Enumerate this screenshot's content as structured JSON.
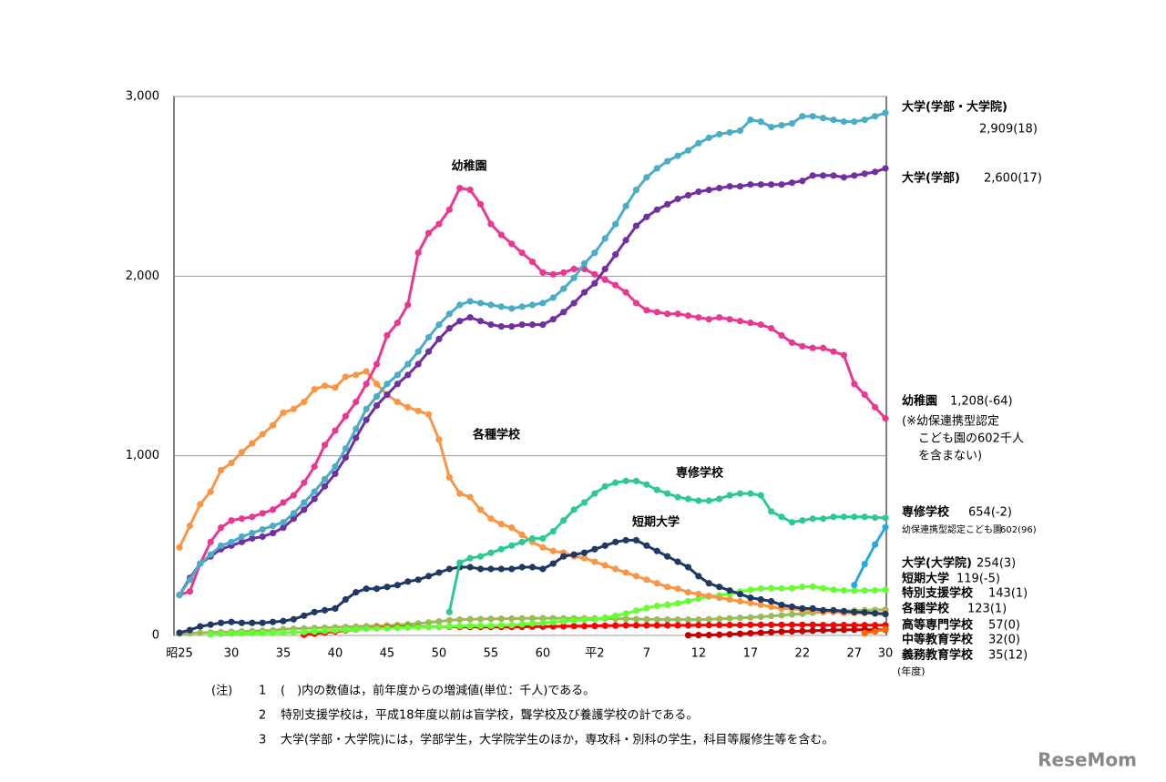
{
  "chart_data": {
    "type": "line",
    "categories": [
      "昭25",
      null,
      null,
      null,
      null,
      "30",
      null,
      null,
      null,
      null,
      "35",
      null,
      null,
      null,
      null,
      "40",
      null,
      null,
      null,
      null,
      "45",
      null,
      null,
      null,
      null,
      "50",
      null,
      null,
      null,
      null,
      "55",
      null,
      null,
      null,
      null,
      "60",
      null,
      null,
      null,
      null,
      "平2",
      null,
      null,
      null,
      null,
      "7",
      null,
      null,
      null,
      null,
      "12",
      null,
      null,
      null,
      null,
      "17",
      null,
      null,
      null,
      null,
      "22",
      null,
      null,
      null,
      null,
      "27",
      null,
      null,
      "30"
    ],
    "x_label": "(年度)",
    "ylim": [
      0,
      3000
    ],
    "yticks": [
      0,
      {
        "value": 1000,
        "label": "1,000"
      },
      {
        "value": 2000,
        "label": "2,000"
      },
      {
        "value": 3000,
        "label": "3,000"
      }
    ],
    "grid": true,
    "series": [
      {
        "name": "大学(学部・大学院)",
        "end_label": "2,909(18)",
        "color": "#4bacc6",
        "values": [
          225,
          310,
          400,
          450,
          500,
          520,
          550,
          570,
          590,
          610,
          630,
          680,
          740,
          800,
          870,
          940,
          1040,
          1150,
          1260,
          1330,
          1400,
          1450,
          1510,
          1580,
          1660,
          1730,
          1790,
          1840,
          1860,
          1850,
          1840,
          1830,
          1820,
          1830,
          1840,
          1850,
          1880,
          1930,
          1990,
          2070,
          2130,
          2210,
          2290,
          2390,
          2480,
          2550,
          2600,
          2640,
          2670,
          2700,
          2740,
          2770,
          2790,
          2800,
          2810,
          2870,
          2860,
          2830,
          2840,
          2850,
          2890,
          2890,
          2880,
          2870,
          2860,
          2860,
          2870,
          2890,
          2909
        ]
      },
      {
        "name": "大学(学部)",
        "end_label": "2,600(17)",
        "color": "#7030a0",
        "values": [
          225,
          320,
          400,
          440,
          480,
          500,
          520,
          540,
          550,
          570,
          600,
          650,
          700,
          760,
          830,
          900,
          990,
          1100,
          1200,
          1280,
          1340,
          1400,
          1450,
          1510,
          1580,
          1650,
          1710,
          1750,
          1770,
          1750,
          1730,
          1720,
          1720,
          1730,
          1730,
          1730,
          1760,
          1800,
          1850,
          1910,
          1960,
          2040,
          2120,
          2200,
          2280,
          2330,
          2370,
          2400,
          2430,
          2450,
          2470,
          2480,
          2490,
          2500,
          2500,
          2510,
          2510,
          2510,
          2510,
          2520,
          2530,
          2560,
          2560,
          2560,
          2550,
          2560,
          2570,
          2580,
          2600
        ]
      },
      {
        "name": "幼稚園",
        "end_label": "1,208(-64)",
        "color": "#e8388f",
        "values": [
          225,
          245,
          400,
          520,
          600,
          640,
          650,
          660,
          680,
          700,
          740,
          780,
          850,
          940,
          1060,
          1140,
          1220,
          1300,
          1400,
          1510,
          1670,
          1740,
          1840,
          2130,
          2240,
          2290,
          2370,
          2490,
          2480,
          2400,
          2290,
          2230,
          2180,
          2130,
          2080,
          2020,
          2010,
          2020,
          2040,
          2040,
          2010,
          1980,
          1950,
          1910,
          1850,
          1810,
          1800,
          1790,
          1790,
          1780,
          1770,
          1760,
          1770,
          1760,
          1750,
          1740,
          1730,
          1710,
          1670,
          1630,
          1610,
          1600,
          1600,
          1580,
          1560,
          1400,
          1340,
          1270,
          1208
        ]
      },
      {
        "name": "各種学校",
        "end_label": "123(1)",
        "color": "#f79646",
        "values": [
          490,
          610,
          730,
          800,
          920,
          960,
          1020,
          1070,
          1120,
          1170,
          1240,
          1260,
          1300,
          1370,
          1390,
          1380,
          1440,
          1450,
          1470,
          1400,
          1340,
          1300,
          1270,
          1250,
          1230,
          1090,
          880,
          790,
          770,
          700,
          650,
          620,
          600,
          560,
          520,
          490,
          470,
          460,
          440,
          430,
          410,
          390,
          370,
          350,
          330,
          310,
          290,
          270,
          260,
          240,
          230,
          220,
          210,
          200,
          190,
          180,
          170,
          160,
          150,
          150,
          140,
          140,
          130,
          130,
          125,
          125,
          125,
          122,
          123
        ]
      },
      {
        "name": "専修学校",
        "end_label": "654(-2)",
        "color": "#2cc990",
        "values": [
          null,
          null,
          null,
          null,
          null,
          null,
          null,
          null,
          null,
          null,
          null,
          null,
          null,
          null,
          null,
          null,
          null,
          null,
          null,
          null,
          null,
          null,
          null,
          null,
          null,
          null,
          131,
          405,
          430,
          440,
          460,
          480,
          500,
          520,
          540,
          540,
          580,
          640,
          700,
          740,
          790,
          830,
          850,
          860,
          860,
          840,
          810,
          790,
          770,
          760,
          750,
          750,
          760,
          780,
          790,
          790,
          780,
          690,
          660,
          630,
          640,
          650,
          650,
          660,
          660,
          660,
          660,
          656,
          654
        ]
      },
      {
        "name": "短期大学",
        "end_label": "119(-5)",
        "color": "#1f3864",
        "values": [
          15,
          30,
          50,
          60,
          70,
          75,
          70,
          70,
          70,
          75,
          80,
          90,
          110,
          130,
          140,
          150,
          200,
          240,
          260,
          260,
          270,
          280,
          300,
          310,
          330,
          350,
          370,
          380,
          380,
          370,
          370,
          370,
          370,
          380,
          380,
          370,
          400,
          440,
          450,
          460,
          480,
          500,
          520,
          530,
          530,
          500,
          470,
          440,
          410,
          380,
          330,
          290,
          270,
          250,
          230,
          210,
          200,
          190,
          170,
          160,
          150,
          150,
          140,
          140,
          135,
          130,
          128,
          123,
          119
        ]
      },
      {
        "name": "大学(大学院)",
        "end_label": "254(3)",
        "color": "#66ff33",
        "values": [
          null,
          null,
          null,
          5,
          8,
          10,
          11,
          12,
          13,
          14,
          15,
          17,
          19,
          22,
          25,
          28,
          31,
          34,
          37,
          39,
          40,
          42,
          44,
          46,
          47,
          48,
          50,
          52,
          53,
          54,
          54,
          56,
          58,
          62,
          66,
          70,
          74,
          79,
          84,
          87,
          90,
          99,
          109,
          122,
          138,
          153,
          164,
          171,
          179,
          191,
          205,
          216,
          223,
          231,
          244,
          254,
          261,
          263,
          262,
          263,
          271,
          272,
          263,
          255,
          251,
          249,
          250,
          251,
          254
        ]
      },
      {
        "name": "特別支援学校",
        "end_label": "143(1)",
        "color": "#9bbb59",
        "values": [
          10,
          12,
          14,
          16,
          18,
          20,
          22,
          24,
          26,
          28,
          35,
          37,
          39,
          41,
          43,
          45,
          47,
          49,
          51,
          53,
          55,
          58,
          62,
          66,
          72,
          78,
          84,
          88,
          90,
          91,
          92,
          93,
          94,
          95,
          96,
          96,
          96,
          95,
          95,
          95,
          95,
          94,
          93,
          92,
          91,
          90,
          89,
          88,
          88,
          88,
          88,
          90,
          92,
          95,
          98,
          100,
          104,
          108,
          112,
          117,
          121,
          126,
          130,
          133,
          136,
          138,
          140,
          142,
          143
        ]
      },
      {
        "name": "高等専門学校",
        "end_label": "57(0)",
        "color": "#ff0000",
        "values": [
          null,
          null,
          null,
          null,
          null,
          null,
          null,
          null,
          null,
          null,
          null,
          null,
          4,
          10,
          16,
          22,
          28,
          33,
          38,
          42,
          44,
          46,
          47,
          48,
          48,
          48,
          48,
          47,
          47,
          47,
          47,
          47,
          47,
          48,
          49,
          49,
          50,
          51,
          52,
          52,
          53,
          54,
          55,
          56,
          56,
          56,
          56,
          56,
          56,
          56,
          57,
          57,
          58,
          58,
          58,
          59,
          59,
          59,
          59,
          59,
          59,
          59,
          58,
          58,
          58,
          57,
          57,
          57,
          57
        ]
      },
      {
        "name": "中等教育学校",
        "end_label": "32(0)",
        "color": "#c00000",
        "values": [
          null,
          null,
          null,
          null,
          null,
          null,
          null,
          null,
          null,
          null,
          null,
          null,
          null,
          null,
          null,
          null,
          null,
          null,
          null,
          null,
          null,
          null,
          null,
          null,
          null,
          null,
          null,
          null,
          null,
          null,
          null,
          null,
          null,
          null,
          null,
          null,
          null,
          null,
          null,
          null,
          null,
          null,
          null,
          null,
          null,
          null,
          null,
          null,
          null,
          1,
          2,
          2,
          4,
          6,
          9,
          12,
          15,
          18,
          21,
          23,
          24,
          26,
          28,
          30,
          31,
          32,
          32,
          32,
          32
        ]
      },
      {
        "name": "義務教育学校",
        "end_label": "35(12)",
        "color": "#ff6600",
        "values": [
          null,
          null,
          null,
          null,
          null,
          null,
          null,
          null,
          null,
          null,
          null,
          null,
          null,
          null,
          null,
          null,
          null,
          null,
          null,
          null,
          null,
          null,
          null,
          null,
          null,
          null,
          null,
          null,
          null,
          null,
          null,
          null,
          null,
          null,
          null,
          null,
          null,
          null,
          null,
          null,
          null,
          null,
          null,
          null,
          null,
          null,
          null,
          null,
          null,
          null,
          null,
          null,
          null,
          null,
          null,
          null,
          null,
          null,
          null,
          null,
          null,
          null,
          null,
          null,
          null,
          null,
          13,
          22,
          35
        ]
      },
      {
        "name": "幼保連携型認定こども園",
        "end_label": "602(96)",
        "color": "#29a9e0",
        "values": [
          null,
          null,
          null,
          null,
          null,
          null,
          null,
          null,
          null,
          null,
          null,
          null,
          null,
          null,
          null,
          null,
          null,
          null,
          null,
          null,
          null,
          null,
          null,
          null,
          null,
          null,
          null,
          null,
          null,
          null,
          null,
          null,
          null,
          null,
          null,
          null,
          null,
          null,
          null,
          null,
          null,
          null,
          null,
          null,
          null,
          null,
          null,
          null,
          null,
          null,
          null,
          null,
          null,
          null,
          null,
          null,
          null,
          null,
          null,
          null,
          null,
          null,
          null,
          null,
          null,
          281,
          397,
          506,
          602
        ]
      }
    ],
    "annotations": [
      "幼稚園",
      "各種学校",
      "専修学校",
      "短期大学"
    ],
    "kindergarten_note": [
      "(※幼保連携型認定",
      "こども園の602千人",
      "を含まない)"
    ],
    "notes_head": "(注)",
    "notes": [
      {
        "num": "1",
        "text": "(　)内の数値は，前年度からの増減値(単位：千人)である。"
      },
      {
        "num": "2",
        "text": "特別支援学校は，平成18年度以前は盲学校，聾学校及び養護学校の計である。"
      },
      {
        "num": "3",
        "text": "大学(学部・大学院)には，学部学生，大学院学生のほか，専攻科・別科の学生，科目等履修生等を含む。"
      }
    ],
    "logo": "ReseMom"
  }
}
